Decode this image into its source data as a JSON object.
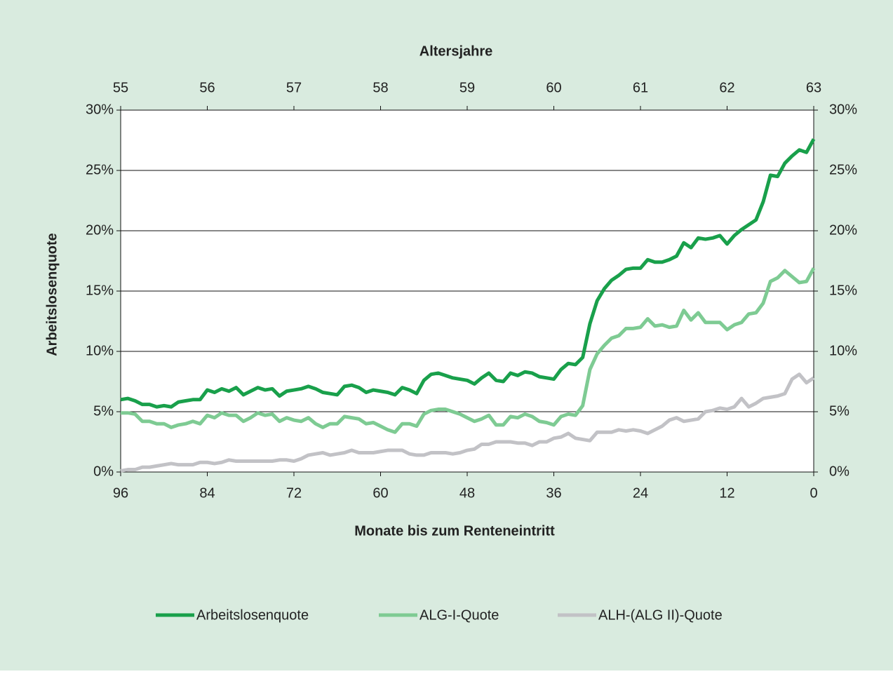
{
  "chart_data": {
    "type": "line",
    "xlabel": "Monate bis zum Renteneintritt",
    "ylabel": "Arbeitslosenquote",
    "x2label": "Altersjahre",
    "x": [
      96,
      95,
      94,
      93,
      92,
      91,
      90,
      89,
      88,
      87,
      86,
      85,
      84,
      83,
      82,
      81,
      80,
      79,
      78,
      77,
      76,
      75,
      74,
      73,
      72,
      71,
      70,
      69,
      68,
      67,
      66,
      65,
      64,
      63,
      62,
      61,
      60,
      59,
      58,
      57,
      56,
      55,
      54,
      53,
      52,
      51,
      50,
      49,
      48,
      47,
      46,
      45,
      44,
      43,
      42,
      41,
      40,
      39,
      38,
      37,
      36,
      35,
      34,
      33,
      32,
      31,
      30,
      29,
      28,
      27,
      26,
      25,
      24,
      23,
      22,
      21,
      20,
      19,
      18,
      17,
      16,
      15,
      14,
      13,
      12,
      11,
      10,
      9,
      8,
      7,
      6,
      5,
      4,
      3,
      2,
      1,
      0
    ],
    "xlim": [
      96,
      0
    ],
    "xticks": [
      96,
      84,
      72,
      60,
      48,
      36,
      24,
      12,
      0
    ],
    "x2lim": [
      55,
      63
    ],
    "x2ticks": [
      55,
      56,
      57,
      58,
      59,
      60,
      61,
      62,
      63
    ],
    "ylim": [
      0,
      30
    ],
    "yticks": [
      {
        "value": 0,
        "label": "0%"
      },
      {
        "value": 5,
        "label": "5%"
      },
      {
        "value": 10,
        "label": "10%"
      },
      {
        "value": 15,
        "label": "15%"
      },
      {
        "value": 20,
        "label": "20%"
      },
      {
        "value": 25,
        "label": "25%"
      },
      {
        "value": 30,
        "label": "30%"
      }
    ],
    "y2lim": [
      0,
      30
    ],
    "y2ticks": [
      {
        "value": 0,
        "label": "0%"
      },
      {
        "value": 5,
        "label": "5%"
      },
      {
        "value": 10,
        "label": "10%"
      },
      {
        "value": 15,
        "label": "15%"
      },
      {
        "value": 20,
        "label": "20%"
      },
      {
        "value": 25,
        "label": "25%"
      },
      {
        "value": 30,
        "label": "30%"
      }
    ],
    "grid": true,
    "legend": "bottom",
    "series": [
      {
        "name": "Arbeitslosenquote",
        "color": "#19a04b",
        "values": [
          6.0,
          6.1,
          5.9,
          5.6,
          5.6,
          5.4,
          5.5,
          5.4,
          5.8,
          5.9,
          6.0,
          6.0,
          6.8,
          6.6,
          6.9,
          6.7,
          7.0,
          6.4,
          6.7,
          7.0,
          6.8,
          6.9,
          6.3,
          6.7,
          6.8,
          6.9,
          7.1,
          6.9,
          6.6,
          6.5,
          6.4,
          7.1,
          7.2,
          7.0,
          6.6,
          6.8,
          6.7,
          6.6,
          6.4,
          7.0,
          6.8,
          6.5,
          7.6,
          8.1,
          8.2,
          8.0,
          7.8,
          7.7,
          7.6,
          7.3,
          7.8,
          8.2,
          7.6,
          7.5,
          8.2,
          8.0,
          8.3,
          8.2,
          7.9,
          7.8,
          7.7,
          8.5,
          9.0,
          8.9,
          9.5,
          12.3,
          14.2,
          15.2,
          15.9,
          16.3,
          16.8,
          16.9,
          16.9,
          17.6,
          17.4,
          17.4,
          17.6,
          17.9,
          19.0,
          18.6,
          19.4,
          19.3,
          19.4,
          19.6,
          18.9,
          19.6,
          20.1,
          20.5,
          20.9,
          22.4,
          24.6,
          24.5,
          25.6,
          26.2,
          26.7,
          26.5,
          27.6
        ]
      },
      {
        "name": "ALG-I-Quote",
        "color": "#7ecb93",
        "values": [
          4.9,
          4.9,
          4.8,
          4.2,
          4.2,
          4.0,
          4.0,
          3.7,
          3.9,
          4.0,
          4.2,
          4.0,
          4.7,
          4.5,
          4.9,
          4.7,
          4.7,
          4.2,
          4.5,
          4.9,
          4.7,
          4.8,
          4.2,
          4.5,
          4.3,
          4.2,
          4.5,
          4.0,
          3.7,
          4.0,
          4.0,
          4.6,
          4.5,
          4.4,
          4.0,
          4.1,
          3.8,
          3.5,
          3.3,
          4.0,
          4.0,
          3.8,
          4.8,
          5.1,
          5.2,
          5.2,
          5.0,
          4.8,
          4.5,
          4.2,
          4.4,
          4.7,
          3.9,
          3.9,
          4.6,
          4.5,
          4.8,
          4.6,
          4.2,
          4.1,
          3.9,
          4.6,
          4.8,
          4.7,
          5.5,
          8.5,
          9.8,
          10.5,
          11.1,
          11.3,
          11.9,
          11.9,
          12.0,
          12.7,
          12.1,
          12.2,
          12.0,
          12.1,
          13.4,
          12.6,
          13.2,
          12.4,
          12.4,
          12.4,
          11.8,
          12.2,
          12.4,
          13.1,
          13.2,
          14.0,
          15.8,
          16.1,
          16.7,
          16.2,
          15.7,
          15.8,
          16.9
        ]
      },
      {
        "name": "ALH-(ALG II)-Quote",
        "color": "#c2c2c6",
        "values": [
          0.1,
          0.2,
          0.2,
          0.4,
          0.4,
          0.5,
          0.6,
          0.7,
          0.6,
          0.6,
          0.6,
          0.8,
          0.8,
          0.7,
          0.8,
          1.0,
          0.9,
          0.9,
          0.9,
          0.9,
          0.9,
          0.9,
          1.0,
          1.0,
          0.9,
          1.1,
          1.4,
          1.5,
          1.6,
          1.4,
          1.5,
          1.6,
          1.8,
          1.6,
          1.6,
          1.6,
          1.7,
          1.8,
          1.8,
          1.8,
          1.5,
          1.4,
          1.4,
          1.6,
          1.6,
          1.6,
          1.5,
          1.6,
          1.8,
          1.9,
          2.3,
          2.3,
          2.5,
          2.5,
          2.5,
          2.4,
          2.4,
          2.2,
          2.5,
          2.5,
          2.8,
          2.9,
          3.2,
          2.8,
          2.7,
          2.6,
          3.3,
          3.3,
          3.3,
          3.5,
          3.4,
          3.5,
          3.4,
          3.2,
          3.5,
          3.8,
          4.3,
          4.5,
          4.2,
          4.3,
          4.4,
          5.0,
          5.1,
          5.3,
          5.2,
          5.4,
          6.1,
          5.4,
          5.7,
          6.1,
          6.2,
          6.3,
          6.5,
          7.7,
          8.1,
          7.4,
          7.8
        ]
      }
    ]
  }
}
